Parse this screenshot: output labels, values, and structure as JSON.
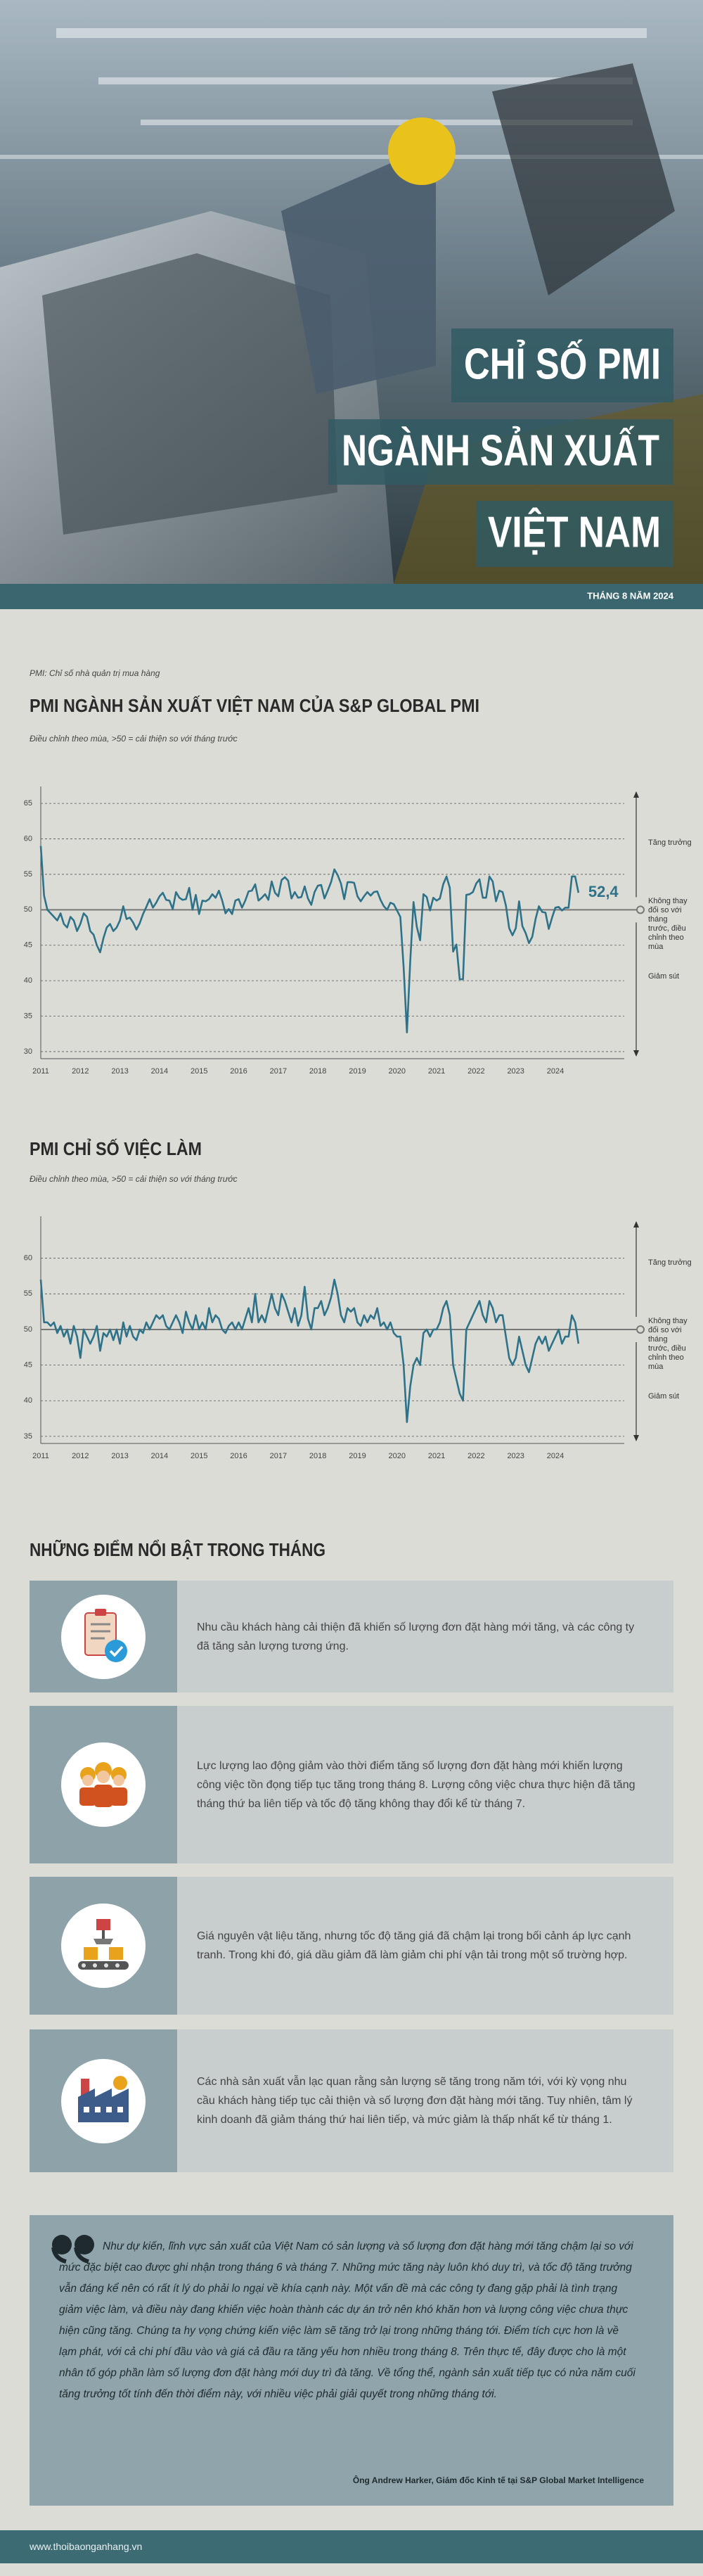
{
  "hero": {
    "title_lines": [
      "CHỈ SỐ PMI",
      "NGÀNH SẢN XUẤT",
      "VIỆT NAM"
    ],
    "date": "THÁNG 8 NĂM 2024"
  },
  "chart_data": [
    {
      "type": "line",
      "note": "PMI: Chỉ số nhà quản trị mua hàng",
      "title": "PMI NGÀNH SẢN XUẤT VIỆT NAM CỦA S&P GLOBAL PMI",
      "subtitle": "Điều chỉnh theo mùa, >50 = cải thiện so với tháng trước",
      "annotations": [
        "Tăng trưởng",
        "Không thay đổi so với tháng trước, điều chỉnh theo mùa",
        "Giảm sút"
      ],
      "ylim": [
        29,
        67
      ],
      "yticks": [
        30,
        35,
        40,
        45,
        50,
        55,
        60,
        65
      ],
      "grid": true,
      "reference_line": 50,
      "categories": [
        "2011",
        null,
        null,
        null,
        null,
        null,
        null,
        null,
        null,
        null,
        null,
        null,
        "2012",
        null,
        null,
        null,
        null,
        null,
        null,
        null,
        null,
        null,
        null,
        null,
        "2013",
        null,
        null,
        null,
        null,
        null,
        null,
        null,
        null,
        null,
        null,
        null,
        "2014",
        null,
        null,
        null,
        null,
        null,
        null,
        null,
        null,
        null,
        null,
        null,
        "2015",
        null,
        null,
        null,
        null,
        null,
        null,
        null,
        null,
        null,
        null,
        null,
        "2016",
        null,
        null,
        null,
        null,
        null,
        null,
        null,
        null,
        null,
        null,
        null,
        "2017",
        null,
        null,
        null,
        null,
        null,
        null,
        null,
        null,
        null,
        null,
        null,
        "2018",
        null,
        null,
        null,
        null,
        null,
        null,
        null,
        null,
        null,
        null,
        null,
        "2019",
        null,
        null,
        null,
        null,
        null,
        null,
        null,
        null,
        null,
        null,
        null,
        "2020",
        null,
        null,
        null,
        null,
        null,
        null,
        null,
        null,
        null,
        null,
        null,
        "2021",
        null,
        null,
        null,
        null,
        null,
        null,
        null,
        null,
        null,
        null,
        null,
        "2022",
        null,
        null,
        null,
        null,
        null,
        null,
        null,
        null,
        null,
        null,
        null,
        "2023",
        null,
        null,
        null,
        null,
        null,
        null,
        null,
        null,
        null,
        null,
        null,
        "2024",
        null,
        null,
        null,
        null,
        null,
        null,
        null
      ],
      "series": [
        {
          "name": "PMI",
          "color": "#2e7289",
          "values": [
            59,
            52,
            50,
            49.5,
            49,
            48.5,
            49.5,
            48,
            47.5,
            49,
            48.5,
            47,
            48,
            49.5,
            49,
            47,
            46.5,
            45,
            44,
            46,
            47.5,
            48,
            47,
            47.5,
            48.5,
            50.5,
            48.7,
            48.9,
            48.2,
            47.2,
            48.1,
            49.4,
            50.4,
            51.5,
            50.3,
            51,
            51.9,
            52.4,
            51.4,
            51.3,
            50.1,
            52.5,
            51.7,
            51.4,
            51.5,
            53.1,
            50,
            52.1,
            49.4,
            51.3,
            51.2,
            51.5,
            52.2,
            51.7,
            52.7,
            51.3,
            49.5,
            50.1,
            49.4,
            51.3,
            51.5,
            50.3,
            51.3,
            52.6,
            52.7,
            53.6,
            51.3,
            51.7,
            52.2,
            51.4,
            54,
            52.4,
            51.9,
            54.2,
            54.6,
            54.1,
            51.6,
            52.5,
            51.7,
            51.8,
            53.3,
            51.6,
            50.7,
            52.5,
            53.4,
            53.5,
            51.6,
            52.7,
            53.9,
            55.7,
            54.9,
            53.7,
            51.5,
            53.9,
            53.9,
            53.8,
            51.9,
            51.2,
            51.9,
            52.5,
            52,
            52.5,
            52.6,
            51.4,
            50.5,
            50,
            51,
            50.8,
            49.9,
            49,
            41.9,
            32.7,
            42.7,
            51.1,
            47.6,
            45.7,
            52.2,
            51.8,
            49.9,
            51.7,
            51.3,
            51.6,
            53.6,
            54.7,
            53.1,
            44.1,
            45.1,
            40.2,
            40.2,
            52.1,
            52.2,
            52.5,
            53.7,
            54.3,
            51.7,
            51.7,
            54.7,
            54,
            51.2,
            52.7,
            52.5,
            50.6,
            47.4,
            46.4,
            47.4,
            51.2,
            47.7,
            46.7,
            45.3,
            46.2,
            48.7,
            50.5,
            49.7,
            49.6,
            47.3,
            48.9,
            50.3,
            50.4,
            49.9,
            50.3,
            50.3,
            54.7,
            54.7,
            52.4
          ],
          "value_labels": [
            null,
            null,
            null,
            null,
            null,
            null,
            null,
            null,
            null,
            null,
            null,
            null,
            null,
            null,
            null,
            null,
            null,
            null,
            null,
            null,
            null,
            null,
            null,
            null,
            null,
            null,
            null,
            null,
            null,
            null,
            null,
            null,
            null,
            null,
            null,
            null,
            null,
            null,
            null,
            null,
            null,
            null,
            null,
            null,
            null,
            null,
            null,
            null,
            null,
            null,
            null,
            null,
            null,
            null,
            null,
            null,
            null,
            null,
            null,
            null,
            null,
            null,
            null,
            null,
            null,
            null,
            null,
            null,
            null,
            null,
            null,
            null,
            null,
            null,
            null,
            null,
            null,
            null,
            null,
            null,
            null,
            null,
            null,
            null,
            null,
            null,
            null,
            null,
            null,
            null,
            null,
            null,
            null,
            null,
            null,
            null,
            null,
            null,
            null,
            null,
            null,
            null,
            null,
            null,
            null,
            null,
            null,
            null,
            null,
            null,
            null,
            null,
            null,
            null,
            null,
            null,
            null,
            null,
            null,
            null,
            null,
            null,
            null,
            null,
            null,
            null,
            null,
            null,
            null,
            null,
            null,
            null,
            null,
            null,
            null,
            null,
            null,
            null,
            null,
            null,
            null,
            null,
            null,
            null,
            null,
            null,
            null,
            null,
            null,
            null,
            null,
            null,
            null,
            null,
            null,
            null,
            null,
            null,
            null,
            null,
            null,
            null,
            null,
            "52,4"
          ]
        }
      ]
    },
    {
      "type": "line",
      "title": "PMI CHỈ SỐ VIỆC LÀM",
      "subtitle": "Điều chỉnh theo mùa, >50 = cải thiện so với tháng trước",
      "annotations": [
        "Tăng trưởng",
        "Không thay đổi so với tháng trước, điều chỉnh theo mùa",
        "Giảm sút"
      ],
      "ylim": [
        34,
        65.5
      ],
      "yticks": [
        35,
        40,
        45,
        50,
        55,
        60
      ],
      "grid": true,
      "reference_line": 50,
      "categories": [
        "2011",
        null,
        null,
        null,
        null,
        null,
        null,
        null,
        null,
        null,
        null,
        null,
        "2012",
        null,
        null,
        null,
        null,
        null,
        null,
        null,
        null,
        null,
        null,
        null,
        "2013",
        null,
        null,
        null,
        null,
        null,
        null,
        null,
        null,
        null,
        null,
        null,
        "2014",
        null,
        null,
        null,
        null,
        null,
        null,
        null,
        null,
        null,
        null,
        null,
        "2015",
        null,
        null,
        null,
        null,
        null,
        null,
        null,
        null,
        null,
        null,
        null,
        "2016",
        null,
        null,
        null,
        null,
        null,
        null,
        null,
        null,
        null,
        null,
        null,
        "2017",
        null,
        null,
        null,
        null,
        null,
        null,
        null,
        null,
        null,
        null,
        null,
        "2018",
        null,
        null,
        null,
        null,
        null,
        null,
        null,
        null,
        null,
        null,
        null,
        "2019",
        null,
        null,
        null,
        null,
        null,
        null,
        null,
        null,
        null,
        null,
        null,
        "2020",
        null,
        null,
        null,
        null,
        null,
        null,
        null,
        null,
        null,
        null,
        null,
        "2021",
        null,
        null,
        null,
        null,
        null,
        null,
        null,
        null,
        null,
        null,
        null,
        "2022",
        null,
        null,
        null,
        null,
        null,
        null,
        null,
        null,
        null,
        null,
        null,
        "2023",
        null,
        null,
        null,
        null,
        null,
        null,
        null,
        null,
        null,
        null,
        null,
        "2024",
        null,
        null,
        null,
        null,
        null,
        null,
        null
      ],
      "series": [
        {
          "name": "Việc làm",
          "color": "#2e7289",
          "values": [
            57,
            51,
            51,
            50.5,
            51,
            49.5,
            50.5,
            49,
            50,
            48,
            50.5,
            49,
            46,
            50,
            49,
            48,
            49,
            50.5,
            47,
            49.5,
            49,
            50,
            48.5,
            50,
            48,
            51,
            49,
            50.5,
            49,
            48.5,
            50,
            49.5,
            51,
            50,
            51,
            52,
            51.5,
            52,
            50.5,
            50,
            51,
            52,
            51,
            49.5,
            52.5,
            51,
            50,
            52,
            50,
            51,
            50,
            53,
            51,
            52,
            51.5,
            50,
            49.5,
            50.5,
            51,
            50,
            51,
            50,
            51.5,
            53,
            51,
            55,
            51,
            52,
            51,
            53,
            55,
            53,
            52,
            55,
            54,
            52.5,
            51,
            53,
            50.5,
            52,
            56,
            51.5,
            50,
            53,
            53,
            54,
            52,
            53,
            54.5,
            57,
            55,
            52,
            51,
            53,
            52.5,
            53,
            51,
            50.5,
            52,
            51,
            52,
            51.5,
            53,
            50.5,
            51,
            50,
            51,
            49.5,
            49,
            49,
            45,
            37,
            42,
            45,
            46,
            45,
            49.5,
            50,
            49,
            50,
            50,
            51,
            53,
            54,
            52,
            45,
            43,
            41,
            40,
            50,
            51,
            52,
            53,
            54,
            52,
            51,
            54,
            53,
            51,
            52,
            52,
            49,
            46,
            45,
            46,
            49,
            47,
            45,
            44,
            46,
            48,
            49,
            48,
            49,
            47,
            48,
            49,
            50,
            48,
            49,
            49,
            52,
            51,
            48
          ]
        }
      ]
    }
  ],
  "highlights": {
    "heading": "NHỮNG ĐIỂM NỔI BẬT TRONG THÁNG",
    "items": [
      "Nhu cầu khách hàng cải thiện đã khiến số lượng đơn đặt hàng mới tăng, và các công ty đã tăng sản lượng tương ứng.",
      "Lực lượng lao động giảm vào thời điểm tăng số lượng đơn đặt hàng mới khiến lượng công việc tồn đọng tiếp tục tăng trong tháng 8. Lượng công việc chưa thực hiện đã tăng tháng thứ ba liên tiếp và tốc độ tăng không thay đổi kể từ tháng 7.",
      "Giá nguyên vật liệu tăng, nhưng tốc độ tăng giá đã chậm lại trong bối cảnh áp lực cạnh tranh. Trong khi đó, giá dầu giảm đã làm giảm chi phí vận tải trong một số trường hợp.",
      "Các nhà sản xuất vẫn lạc quan rằng sản lượng sẽ tăng trong năm tới, với kỳ vọng nhu cầu khách hàng tiếp tục cải thiện và số lượng đơn đặt hàng mới tăng. Tuy nhiên, tâm lý kinh doanh đã giảm tháng thứ hai liên tiếp, và mức giảm là thấp nhất kể từ tháng 1."
    ]
  },
  "quote": {
    "text": "Như dự kiến, lĩnh vực sản xuất của Việt Nam có sản lượng và số lượng đơn đặt hàng mới tăng chậm lại so với mức đặc biệt cao được ghi nhận trong tháng 6 và tháng 7. Những mức tăng này luôn khó duy trì, và tốc độ tăng trưởng vẫn đáng kể nên có rất ít lý do phải lo ngại về khía cạnh này. Một vấn đề mà các công ty đang gặp phải là tình trạng giảm việc làm, và điều này đang khiến việc hoàn thành các dự án trở nên khó khăn hơn và lượng công việc chưa thực hiện cũng tăng. Chúng ta hy vọng chứng kiến việc làm sẽ tăng trở lại trong những tháng tới. Điểm tích cực hơn là về lạm phát, với cả chi phí đầu vào và giá cả đầu ra tăng yếu hơn nhiều trong tháng 8. Trên thực tế, đây được cho là một nhân tố góp phần làm số lượng đơn đặt hàng mới duy trì đà tăng. Về tổng thể, ngành sản xuất tiếp tục có nửa năm cuối tăng trưởng tốt tính đến thời điểm này, với nhiều việc phải giải quyết trong những tháng tới.",
    "attribution": "Ông Andrew Harker, Giám đốc Kinh tế tại S&P Global Market Intelligence"
  },
  "footer": {
    "url": "www.thoibaonganhang.vn"
  }
}
